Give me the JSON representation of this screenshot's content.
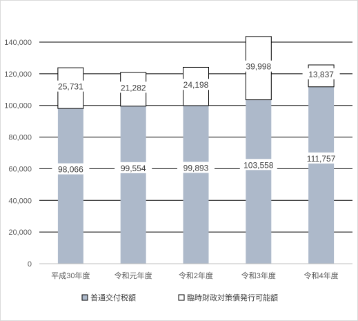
{
  "chart_data": {
    "type": "bar",
    "stacked": true,
    "title": "",
    "xlabel": "",
    "ylabel": "",
    "categories": [
      "平成30年度",
      "令和元年度",
      "令和2年度",
      "令和3年度",
      "令和4年度"
    ],
    "series": [
      {
        "name": "普通交付税額",
        "values": [
          98066,
          99554,
          99893,
          103558,
          111757
        ],
        "labels": [
          "98,066",
          "99,554",
          "99,893",
          "103,558",
          "111,757"
        ],
        "color": "#adb9ca"
      },
      {
        "name": "臨時財政対策債発行可能額",
        "values": [
          25731,
          21282,
          24198,
          39998,
          13837
        ],
        "labels": [
          "25,731",
          "21,282",
          "24,198",
          "39,998",
          "13,837"
        ],
        "color": "#ffffff"
      }
    ],
    "ylim": [
      0,
      140000
    ],
    "yticks": [
      0,
      20000,
      40000,
      60000,
      80000,
      100000,
      120000,
      140000
    ],
    "ytick_labels": [
      "0",
      "20,000",
      "40,000",
      "60,000",
      "80,000",
      "100,000",
      "120,000",
      "140,000"
    ],
    "grid": true,
    "legend": "bottom"
  }
}
